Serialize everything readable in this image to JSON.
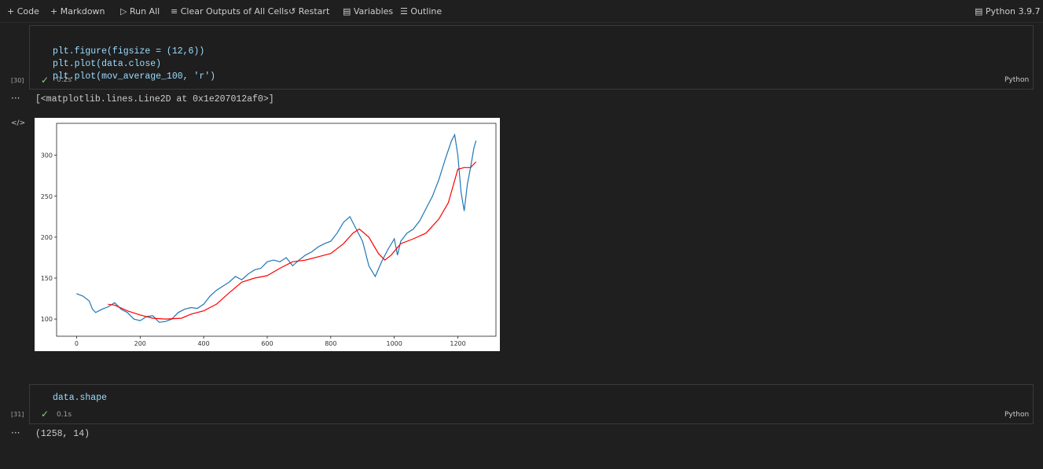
{
  "toolbar": {
    "items": [
      "Code",
      "Markdown",
      "Run All",
      "Clear Outputs of All Cells",
      "Restart",
      "Variables",
      "Outline"
    ],
    "kernel": "Python 3.9.7"
  },
  "cells": [
    {
      "code": [
        "plt.figure(figsize = (12,6))",
        "plt.plot(data.close)",
        "plt.plot(mov_average_100, 'r')"
      ],
      "count": "[30]",
      "time": "0.2s",
      "language": "Python",
      "output": "[<matplotlib.lines.Line2D at 0x1e207012af0>]"
    },
    {
      "code": [
        "data.shape"
      ],
      "count": "[31]",
      "time": "0.1s",
      "language": "Python",
      "output": "(1258, 14)"
    }
  ],
  "chart_data": {
    "type": "line",
    "series": [
      {
        "color": "#1f77b4",
        "x": [
          0,
          20,
          40,
          50,
          60,
          80,
          100,
          120,
          140,
          160,
          180,
          200,
          220,
          240,
          260,
          280,
          300,
          320,
          340,
          360,
          380,
          400,
          420,
          440,
          460,
          480,
          500,
          520,
          540,
          560,
          580,
          600,
          620,
          640,
          660,
          680,
          700,
          720,
          740,
          760,
          780,
          800,
          820,
          840,
          860,
          880,
          900,
          920,
          940,
          960,
          980,
          1000,
          1010,
          1020,
          1040,
          1060,
          1080,
          1100,
          1120,
          1140,
          1160,
          1180,
          1190,
          1200,
          1210,
          1220,
          1230,
          1240,
          1250,
          1257
        ],
        "values": [
          131,
          128,
          122,
          112,
          108,
          112,
          115,
          120,
          112,
          108,
          100,
          98,
          103,
          104,
          96,
          97,
          100,
          108,
          112,
          114,
          113,
          118,
          128,
          135,
          140,
          145,
          152,
          148,
          155,
          160,
          162,
          170,
          172,
          170,
          175,
          165,
          172,
          178,
          182,
          188,
          192,
          195,
          205,
          218,
          225,
          210,
          195,
          165,
          152,
          170,
          185,
          198,
          178,
          195,
          205,
          210,
          220,
          235,
          250,
          270,
          295,
          318,
          325,
          300,
          255,
          232,
          265,
          285,
          308,
          318
        ]
      },
      {
        "color": "#ff0000",
        "x": [
          99,
          120,
          160,
          200,
          240,
          280,
          330,
          360,
          400,
          440,
          480,
          520,
          560,
          600,
          640,
          680,
          720,
          760,
          800,
          840,
          870,
          890,
          920,
          950,
          970,
          990,
          1020,
          1060,
          1100,
          1140,
          1170,
          1200,
          1220,
          1240,
          1257
        ],
        "values": [
          118,
          117,
          110,
          105,
          101,
          100,
          101,
          106,
          110,
          118,
          132,
          145,
          150,
          153,
          162,
          170,
          172,
          176,
          180,
          192,
          205,
          210,
          200,
          180,
          172,
          178,
          192,
          198,
          205,
          222,
          242,
          283,
          285,
          285,
          292
        ]
      }
    ],
    "xlim": [
      -62.85,
      1319.85
    ],
    "xticks": [
      0,
      200,
      400,
      600,
      800,
      1000,
      1200
    ],
    "ylim": [
      79,
      339
    ],
    "yticks": [
      100,
      150,
      200,
      250,
      300
    ],
    "grid": false
  }
}
